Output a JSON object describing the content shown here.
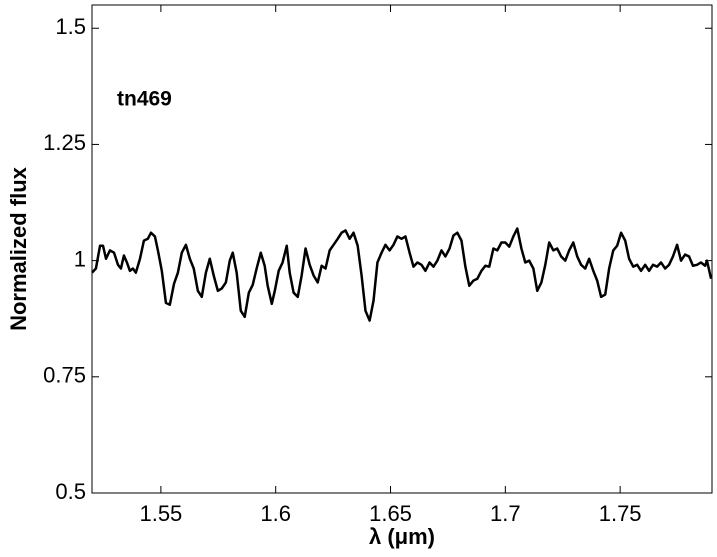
{
  "chart_data": {
    "type": "line",
    "xlabel": "λ (μm)",
    "ylabel": "Normalized flux",
    "annotation": "tn469",
    "xlim": [
      1.52,
      1.79
    ],
    "ylim": [
      0.5,
      1.55
    ],
    "xticks": [
      1.55,
      1.6,
      1.65,
      1.7,
      1.75
    ],
    "yticks": [
      0.5,
      0.75,
      1,
      1.25,
      1.5
    ],
    "grid": false,
    "series": [
      {
        "color": "#000000",
        "x": [
          1.52,
          1.5217,
          1.5235,
          1.5248,
          1.5261,
          1.5278,
          1.5296,
          1.5313,
          1.5326,
          1.5339,
          1.5352,
          1.5365,
          1.5378,
          1.5391,
          1.5409,
          1.5426,
          1.5443,
          1.5457,
          1.5474,
          1.5487,
          1.5504,
          1.5522,
          1.5539,
          1.5557,
          1.5574,
          1.5591,
          1.5609,
          1.5626,
          1.5643,
          1.5661,
          1.5678,
          1.5696,
          1.5713,
          1.573,
          1.5748,
          1.5765,
          1.5783,
          1.58,
          1.5813,
          1.583,
          1.5848,
          1.5865,
          1.5883,
          1.59,
          1.5917,
          1.5935,
          1.5952,
          1.5965,
          1.5983,
          1.5996,
          1.6013,
          1.603,
          1.6048,
          1.6061,
          1.6078,
          1.6096,
          1.6113,
          1.613,
          1.6148,
          1.6165,
          1.6183,
          1.62,
          1.6217,
          1.6235,
          1.6252,
          1.627,
          1.6287,
          1.6304,
          1.6322,
          1.6339,
          1.6357,
          1.6374,
          1.6391,
          1.6409,
          1.6426,
          1.6443,
          1.6461,
          1.6478,
          1.6496,
          1.6513,
          1.653,
          1.6548,
          1.6565,
          1.6583,
          1.66,
          1.6617,
          1.6635,
          1.6652,
          1.667,
          1.6687,
          1.6704,
          1.6722,
          1.6739,
          1.6757,
          1.6774,
          1.6791,
          1.6809,
          1.6826,
          1.6843,
          1.6861,
          1.6878,
          1.6896,
          1.6913,
          1.693,
          1.6948,
          1.6965,
          1.6983,
          1.7,
          1.7017,
          1.7035,
          1.7052,
          1.707,
          1.7087,
          1.7104,
          1.7122,
          1.7139,
          1.7157,
          1.7174,
          1.7191,
          1.7209,
          1.7226,
          1.7243,
          1.7261,
          1.7278,
          1.7296,
          1.7313,
          1.733,
          1.7348,
          1.7365,
          1.7383,
          1.74,
          1.7417,
          1.7435,
          1.7452,
          1.747,
          1.7487,
          1.7504,
          1.7522,
          1.7539,
          1.7557,
          1.7574,
          1.7591,
          1.7609,
          1.7626,
          1.7643,
          1.7661,
          1.7678,
          1.7696,
          1.7713,
          1.773,
          1.7748,
          1.7765,
          1.7783,
          1.78,
          1.7817,
          1.7835,
          1.7852,
          1.787,
          1.7878,
          1.7896
        ],
        "values": [
          0.974,
          0.983,
          1.032,
          1.032,
          1.004,
          1.022,
          1.017,
          0.991,
          0.983,
          1.011,
          0.996,
          0.978,
          0.983,
          0.974,
          1.004,
          1.043,
          1.047,
          1.06,
          1.052,
          1.022,
          0.978,
          0.909,
          0.905,
          0.95,
          0.974,
          1.017,
          1.034,
          1.004,
          0.983,
          0.935,
          0.922,
          0.974,
          1.004,
          0.968,
          0.935,
          0.94,
          0.953,
          1.0,
          1.017,
          0.974,
          0.892,
          0.879,
          0.931,
          0.948,
          0.983,
          1.017,
          0.989,
          0.946,
          0.907,
          0.935,
          0.978,
          0.996,
          1.032,
          0.974,
          0.931,
          0.922,
          0.968,
          1.026,
          0.991,
          0.968,
          0.953,
          0.989,
          0.983,
          1.022,
          1.034,
          1.047,
          1.06,
          1.065,
          1.047,
          1.06,
          1.032,
          0.968,
          0.892,
          0.871,
          0.914,
          0.996,
          1.017,
          1.034,
          1.022,
          1.034,
          1.052,
          1.047,
          1.052,
          1.017,
          0.987,
          0.996,
          0.991,
          0.978,
          0.996,
          0.987,
          1.0,
          1.022,
          1.009,
          1.026,
          1.054,
          1.06,
          1.043,
          0.987,
          0.946,
          0.957,
          0.961,
          0.978,
          0.989,
          0.987,
          1.026,
          1.022,
          1.039,
          1.039,
          1.03,
          1.052,
          1.069,
          1.026,
          0.996,
          1.0,
          0.983,
          0.935,
          0.953,
          0.991,
          1.039,
          1.022,
          1.026,
          1.009,
          1.0,
          1.022,
          1.039,
          1.009,
          0.991,
          0.983,
          1.004,
          0.978,
          0.957,
          0.922,
          0.927,
          0.983,
          1.022,
          1.032,
          1.06,
          1.043,
          1.004,
          0.987,
          0.991,
          0.978,
          0.991,
          0.978,
          0.991,
          0.987,
          0.996,
          0.983,
          0.991,
          1.009,
          1.034,
          1.0,
          1.013,
          1.009,
          0.989,
          0.991,
          0.996,
          0.989,
          1.0,
          0.961
        ]
      }
    ]
  }
}
